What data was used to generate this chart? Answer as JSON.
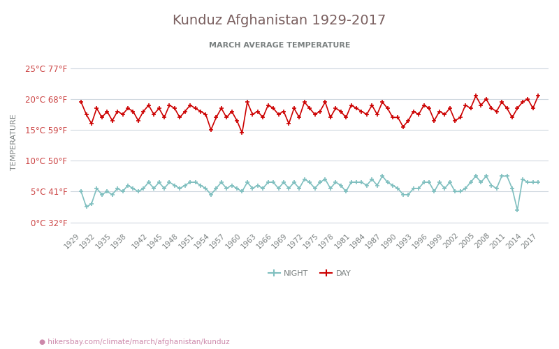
{
  "title": "Kunduz Afghanistan 1929-2017",
  "subtitle": "MARCH AVERAGE TEMPERATURE",
  "ylabel": "TEMPERATURE",
  "xlabel_url": "hikersbay.com/climate/march/afghanistan/kunduz",
  "y_ticks_c": [
    0,
    5,
    10,
    15,
    20,
    25
  ],
  "y_ticks_labels": [
    "0°C 32°F",
    "5°C 41°F",
    "10°C 50°F",
    "15°C 59°F",
    "20°C 68°F",
    "25°C 77°F"
  ],
  "years": [
    1929,
    1930,
    1931,
    1932,
    1933,
    1934,
    1935,
    1936,
    1937,
    1938,
    1939,
    1940,
    1941,
    1942,
    1943,
    1944,
    1945,
    1946,
    1947,
    1948,
    1949,
    1950,
    1951,
    1952,
    1953,
    1954,
    1955,
    1956,
    1957,
    1958,
    1959,
    1960,
    1961,
    1962,
    1963,
    1964,
    1965,
    1966,
    1967,
    1968,
    1969,
    1970,
    1971,
    1972,
    1973,
    1974,
    1975,
    1976,
    1977,
    1978,
    1979,
    1980,
    1981,
    1982,
    1983,
    1984,
    1985,
    1986,
    1987,
    1988,
    1989,
    1990,
    1991,
    1992,
    1993,
    1994,
    1995,
    1996,
    1997,
    1998,
    1999,
    2000,
    2001,
    2002,
    2003,
    2004,
    2005,
    2006,
    2007,
    2008,
    2009,
    2010,
    2011,
    2012,
    2013,
    2014,
    2015,
    2016,
    2017
  ],
  "day_temps": [
    19.5,
    17.5,
    16.0,
    18.5,
    17.0,
    18.0,
    16.5,
    18.0,
    17.5,
    18.5,
    18.0,
    16.5,
    18.0,
    19.0,
    17.5,
    18.5,
    17.0,
    19.0,
    18.5,
    17.0,
    18.0,
    19.0,
    18.5,
    18.0,
    17.5,
    15.0,
    17.0,
    18.5,
    17.0,
    18.0,
    16.5,
    14.5,
    19.5,
    17.5,
    18.0,
    17.0,
    19.0,
    18.5,
    17.5,
    18.0,
    16.0,
    18.5,
    17.0,
    19.5,
    18.5,
    17.5,
    18.0,
    19.5,
    17.0,
    18.5,
    18.0,
    17.0,
    19.0,
    18.5,
    18.0,
    17.5,
    19.0,
    17.5,
    19.5,
    18.5,
    17.0,
    17.0,
    15.5,
    16.5,
    18.0,
    17.5,
    19.0,
    18.5,
    16.5,
    18.0,
    17.5,
    18.5,
    16.5,
    17.0,
    19.0,
    18.5,
    20.5,
    19.0,
    20.0,
    18.5,
    18.0,
    19.5,
    18.5,
    17.0,
    18.5,
    19.5,
    20.0,
    18.5,
    20.5
  ],
  "night_temps": [
    5.0,
    2.5,
    3.0,
    5.5,
    4.5,
    5.0,
    4.5,
    5.5,
    5.0,
    6.0,
    5.5,
    5.0,
    5.5,
    6.5,
    5.5,
    6.5,
    5.5,
    6.5,
    6.0,
    5.5,
    6.0,
    6.5,
    6.5,
    6.0,
    5.5,
    4.5,
    5.5,
    6.5,
    5.5,
    6.0,
    5.5,
    5.0,
    6.5,
    5.5,
    6.0,
    5.5,
    6.5,
    6.5,
    5.5,
    6.5,
    5.5,
    6.5,
    5.5,
    7.0,
    6.5,
    5.5,
    6.5,
    7.0,
    5.5,
    6.5,
    6.0,
    5.0,
    6.5,
    6.5,
    6.5,
    6.0,
    7.0,
    6.0,
    7.5,
    6.5,
    6.0,
    5.5,
    4.5,
    4.5,
    5.5,
    5.5,
    6.5,
    6.5,
    5.0,
    6.5,
    5.5,
    6.5,
    5.0,
    5.0,
    5.5,
    6.5,
    7.5,
    6.5,
    7.5,
    6.0,
    5.5,
    7.5,
    7.5,
    5.5,
    2.0,
    7.0,
    6.5,
    6.5,
    6.5
  ],
  "day_color": "#cc0000",
  "night_color": "#7fbfbf",
  "title_color": "#7a6060",
  "subtitle_color": "#7a8080",
  "axis_label_color": "#7a8080",
  "tick_label_color": "#cc4444",
  "grid_color": "#d0d8e0",
  "background_color": "#ffffff",
  "legend_night_color": "#7fbfbf",
  "legend_day_color": "#cc0000",
  "url_color": "#cc88aa",
  "x_tick_years": [
    1929,
    1932,
    1935,
    1938,
    1942,
    1945,
    1948,
    1951,
    1954,
    1957,
    1960,
    1963,
    1966,
    1969,
    1972,
    1975,
    1978,
    1981,
    1984,
    1987,
    1990,
    1993,
    1996,
    1999,
    2002,
    2005,
    2008,
    2011,
    2014,
    2017
  ]
}
